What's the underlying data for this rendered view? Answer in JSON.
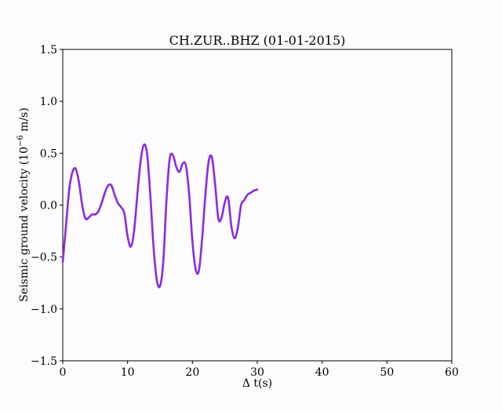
{
  "chart_data": {
    "type": "line",
    "title": "CH.ZUR..BHZ (01-01-2015)",
    "xlabel": "Δ t(s)",
    "ylabel_main": "Seismic ground velocity (10",
    "ylabel_exp": "−6",
    "ylabel_unit": " m/s)",
    "xlim": [
      0,
      60
    ],
    "ylim": [
      -1.5,
      1.5
    ],
    "xticks": [
      0,
      10,
      20,
      30,
      40,
      50,
      60
    ],
    "yticks": [
      -1.5,
      -1.0,
      -0.5,
      0.0,
      0.5,
      1.0,
      1.5
    ],
    "xtick_labels": [
      "0",
      "10",
      "20",
      "30",
      "40",
      "50",
      "60"
    ],
    "ytick_labels": [
      "−1.5",
      "−1.0",
      "−0.5",
      "0.0",
      "0.5",
      "1.0",
      "1.5"
    ],
    "grid": false,
    "line_color": "#8a2be2",
    "series": [
      {
        "x": [
          0,
          0.5,
          1,
          1.5,
          2,
          2.5,
          3,
          3.5,
          4,
          4.5,
          5,
          5.5,
          6,
          6.5,
          7,
          7.5,
          8,
          8.5,
          9,
          9.5,
          10,
          10.5,
          11,
          11.5,
          12,
          12.5,
          13,
          13.5,
          14,
          14.5,
          15,
          15.5,
          16,
          16.5,
          17,
          17.5,
          18,
          18.5,
          19,
          19.5,
          20,
          20.5,
          21,
          21.5,
          22,
          22.5,
          23,
          23.5,
          24,
          24.5,
          25,
          25.5,
          26,
          26.5,
          27,
          27.5,
          28,
          28.5,
          29,
          29.5,
          30
        ],
        "y": [
          -0.55,
          -0.2,
          0.15,
          0.32,
          0.35,
          0.22,
          0.0,
          -0.13,
          -0.12,
          -0.09,
          -0.09,
          -0.06,
          0.02,
          0.12,
          0.19,
          0.19,
          0.1,
          0.02,
          -0.02,
          -0.08,
          -0.3,
          -0.4,
          -0.25,
          0.1,
          0.42,
          0.58,
          0.5,
          0.1,
          -0.4,
          -0.72,
          -0.78,
          -0.55,
          0.05,
          0.45,
          0.48,
          0.37,
          0.32,
          0.4,
          0.38,
          0.1,
          -0.35,
          -0.62,
          -0.63,
          -0.32,
          0.1,
          0.42,
          0.46,
          0.2,
          -0.13,
          -0.12,
          0.03,
          0.07,
          -0.2,
          -0.32,
          -0.22,
          0.0,
          0.05,
          0.1,
          0.12,
          0.14,
          0.15
        ]
      }
    ]
  }
}
